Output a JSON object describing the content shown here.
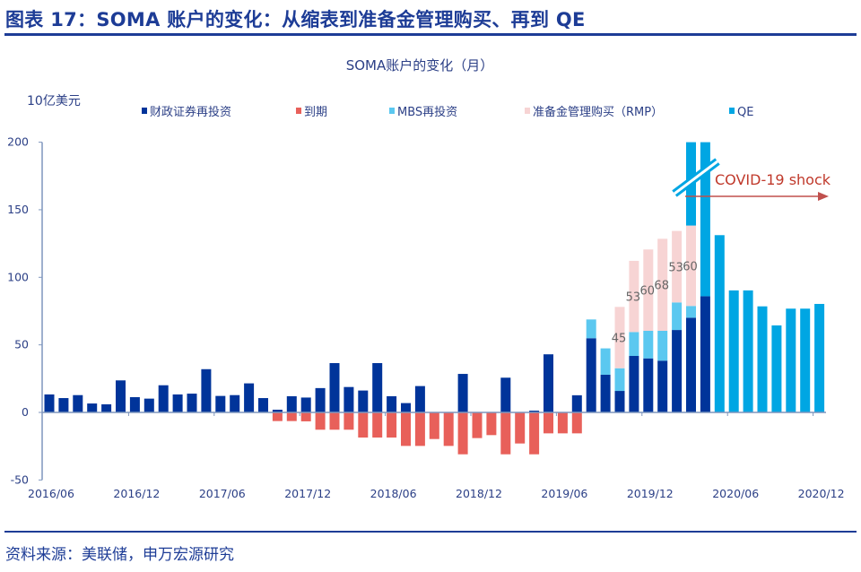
{
  "header": {
    "title": "图表 17：SOMA 账户的变化：从缩表到准备金管理购买、再到 QE"
  },
  "footer": {
    "source": "资料来源：美联储，申万宏源研究"
  },
  "chart_data": {
    "type": "bar",
    "stacked": true,
    "title": "SOMA账户的变化（月）",
    "ylabel": "10亿美元",
    "xlabel": "",
    "ylim": [
      -50,
      200
    ],
    "yticks": [
      200,
      150,
      100,
      50,
      0,
      -50
    ],
    "grid": false,
    "legend_position": "top",
    "categories": [
      "2016/06",
      "2016/07",
      "2016/08",
      "2016/09",
      "2016/10",
      "2016/11",
      "2016/12",
      "2017/01",
      "2017/02",
      "2017/03",
      "2017/04",
      "2017/05",
      "2017/06",
      "2017/07",
      "2017/08",
      "2017/09",
      "2017/10",
      "2017/11",
      "2017/12",
      "2018/01",
      "2018/02",
      "2018/03",
      "2018/04",
      "2018/05",
      "2018/06",
      "2018/07",
      "2018/08",
      "2018/09",
      "2018/10",
      "2018/11",
      "2018/12",
      "2019/01",
      "2019/02",
      "2019/03",
      "2019/04",
      "2019/05",
      "2019/06",
      "2019/07",
      "2019/08",
      "2019/09",
      "2019/10",
      "2019/11",
      "2019/12",
      "2020/01",
      "2020/02",
      "2020/03",
      "2020/04",
      "2020/05",
      "2020/06",
      "2020/07",
      "2020/08",
      "2020/09",
      "2020/10",
      "2020/11",
      "2020/12"
    ],
    "xtick_labels": [
      "2016/06",
      "2016/12",
      "2017/06",
      "2017/12",
      "2018/06",
      "2018/12",
      "2019/06",
      "2019/12",
      "2020/06",
      "2020/12"
    ],
    "series": [
      {
        "name": "财政证券再投资",
        "color": "#00349a",
        "values": [
          13.3,
          10.6,
          12.8,
          6.6,
          6,
          23.7,
          11.3,
          10.2,
          20.1,
          13.3,
          13.9,
          32,
          12.2,
          12.8,
          21.5,
          10.6,
          2,
          12,
          11,
          18,
          36.5,
          18.8,
          16.2,
          36.5,
          12,
          6.9,
          19.5,
          0,
          0,
          28.5,
          0,
          0,
          25.7,
          0,
          1.3,
          43,
          0,
          12.7,
          54.9,
          27.9,
          15.9,
          41.8,
          40,
          38.3,
          61,
          70.1,
          86,
          0,
          0,
          0,
          0,
          0,
          0,
          0,
          0
        ]
      },
      {
        "name": "到期",
        "color": "#e8605a",
        "values": [
          0,
          0,
          0,
          0,
          0,
          0,
          0,
          0,
          0,
          0,
          0,
          0,
          0,
          0,
          0,
          0,
          -6.4,
          -6.4,
          -6.6,
          -12.8,
          -12.8,
          -12.8,
          -18.6,
          -18.6,
          -18.6,
          -24.8,
          -24.8,
          -19.7,
          -24.8,
          -31,
          -19,
          -16.8,
          -31,
          -23,
          -31,
          -15.5,
          -15.5,
          -15.5,
          0,
          0,
          0,
          0,
          0,
          0,
          0,
          0,
          0,
          0,
          0,
          0,
          0,
          0,
          0,
          0,
          0
        ]
      },
      {
        "name": "MBS再投资",
        "color": "#5bc8f0",
        "values": [
          0,
          0,
          0,
          0,
          0,
          0,
          0,
          0,
          0,
          0,
          0,
          0,
          0,
          0,
          0,
          0,
          0,
          0,
          0,
          0,
          0,
          0,
          0,
          0,
          0,
          0,
          0,
          0,
          0,
          0,
          0,
          0,
          0,
          0,
          0,
          0,
          0,
          0,
          13.9,
          19.5,
          16.8,
          17.7,
          20.4,
          22.1,
          20.4,
          8.7,
          0,
          0,
          0,
          0,
          0,
          0,
          0,
          0,
          0
        ]
      },
      {
        "name": "准备金管理购买（RMP）",
        "color": "#f7d4d4",
        "values": [
          0,
          0,
          0,
          0,
          0,
          0,
          0,
          0,
          0,
          0,
          0,
          0,
          0,
          0,
          0,
          0,
          0,
          0,
          0,
          0,
          0,
          0,
          0,
          0,
          0,
          0,
          0,
          0,
          0,
          0,
          0,
          0,
          0,
          0,
          0,
          0,
          0,
          0,
          0,
          0,
          45.4,
          52.7,
          60.2,
          68.1,
          52.9,
          59.5,
          0,
          0,
          0,
          0,
          0,
          0,
          0,
          0,
          0
        ],
        "data_labels": [
          "",
          "",
          "",
          "",
          "",
          "",
          "",
          "",
          "",
          "",
          "",
          "",
          "",
          "",
          "",
          "",
          "",
          "",
          "",
          "",
          "",
          "",
          "",
          "",
          "",
          "",
          "",
          "",
          "",
          "",
          "",
          "",
          "",
          "",
          "",
          "",
          "",
          "",
          "",
          "",
          "45",
          "53",
          "60",
          "68",
          "53",
          "60",
          "",
          "",
          "",
          "",
          "",
          "",
          "",
          "",
          ""
        ]
      },
      {
        "name": "QE",
        "color": "#00a6e3",
        "values": [
          0,
          0,
          0,
          0,
          0,
          0,
          0,
          0,
          0,
          0,
          0,
          0,
          0,
          0,
          0,
          0,
          0,
          0,
          0,
          0,
          0,
          0,
          0,
          0,
          0,
          0,
          0,
          0,
          0,
          0,
          0,
          0,
          0,
          0,
          0,
          0,
          0,
          0,
          0,
          0,
          0,
          0,
          0,
          0,
          0,
          null,
          null,
          131.2,
          90.3,
          90.3,
          78.5,
          64.4,
          76.8,
          76.8,
          80.3
        ],
        "off_scale_categories": [
          "2020/03",
          "2020/04"
        ]
      }
    ],
    "annotations": [
      {
        "text": "COVID-19 shock",
        "color": "#c0392b",
        "from_category": "2020/03",
        "to_category": "2020/12",
        "arrow": true
      }
    ],
    "axis_break_categories": [
      "2020/03",
      "2020/04"
    ]
  }
}
